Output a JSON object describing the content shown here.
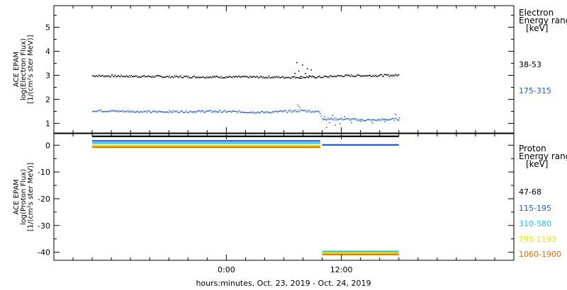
{
  "chart_data": [
    {
      "type": "scatter",
      "ylabel_lines": [
        "ACE EPAM",
        "log(Electron Flux)",
        "[1/(cm²s ster MeV)]"
      ],
      "ylim": [
        0.6,
        5.9
      ],
      "yticks": [
        1,
        2,
        3,
        4,
        5
      ],
      "ytick_labels": [
        "1",
        "2",
        "3",
        "4",
        "5"
      ],
      "legend_title_lines": [
        "Electron",
        "Energy ranges",
        "[keV]"
      ],
      "series": [
        {
          "name": "38-53",
          "color": "#000000",
          "baseline": [
            [
              -14,
              3.0
            ],
            [
              -6,
              2.96
            ],
            [
              0,
              2.95
            ],
            [
              6,
              2.94
            ],
            [
              10,
              2.95
            ],
            [
              12,
              3.0
            ],
            [
              18,
              3.02
            ]
          ],
          "spike": [
            [
              7.1,
              3.1
            ],
            [
              7.3,
              3.55
            ],
            [
              7.5,
              3.2
            ],
            [
              7.7,
              2.9
            ],
            [
              7.9,
              3.45
            ],
            [
              8.2,
              3.1
            ],
            [
              8.4,
              3.3
            ],
            [
              8.6,
              3.0
            ],
            [
              8.8,
              3.25
            ],
            [
              9.1,
              2.95
            ]
          ]
        },
        {
          "name": "175-315",
          "color": "#1d5fd6",
          "baseline": [
            [
              -14,
              1.55
            ],
            [
              -8,
              1.5
            ],
            [
              -2,
              1.52
            ],
            [
              4,
              1.48
            ],
            [
              8,
              1.55
            ],
            [
              9.7,
              1.5
            ],
            [
              10.0,
              1.2
            ],
            [
              12,
              1.2
            ],
            [
              15,
              1.15
            ],
            [
              18,
              1.2
            ]
          ],
          "spike": [
            [
              7.4,
              1.78
            ],
            [
              7.6,
              1.7
            ],
            [
              10.2,
              1.3
            ],
            [
              10.4,
              0.85
            ],
            [
              10.7,
              1.05
            ],
            [
              11.0,
              1.35
            ],
            [
              11.3,
              0.95
            ],
            [
              11.8,
              1.0
            ],
            [
              12.3,
              1.3
            ],
            [
              13.0,
              1.05
            ],
            [
              14.0,
              1.1
            ],
            [
              15.2,
              1.05
            ],
            [
              16.5,
              1.1
            ],
            [
              17.6,
              1.4
            ],
            [
              18.0,
              1.25
            ]
          ]
        }
      ]
    },
    {
      "type": "scatter",
      "ylabel_lines": [
        "ACE EPAM",
        "log(Proton Flux)",
        "[1/(cm²s ster MeV)]"
      ],
      "ylim": [
        -43,
        4.3
      ],
      "yticks": [
        0,
        -10,
        -20,
        -30,
        -40
      ],
      "ytick_labels": [
        "0",
        "-10",
        "-20",
        "-30",
        "-40"
      ],
      "legend_title_lines": [
        "Proton",
        "Energy ranges",
        "[keV]"
      ],
      "series": [
        {
          "name": "47-68",
          "color": "#000000",
          "segments": [
            [
              [
                -14,
                3.3
              ],
              [
                18,
                3.3
              ]
            ]
          ]
        },
        {
          "name": "115-195",
          "color": "#1d5fd6",
          "segments": [
            [
              [
                -14,
                1.6
              ],
              [
                9.8,
                1.6
              ]
            ],
            [
              [
                10,
                0.1
              ],
              [
                18,
                0.1
              ]
            ]
          ]
        },
        {
          "name": "310-580",
          "color": "#17c8e8",
          "segments": [
            [
              [
                -14,
                0.8
              ],
              [
                9.8,
                0.8
              ]
            ],
            [
              [
                10,
                -39.7
              ],
              [
                18,
                -39.7
              ]
            ]
          ]
        },
        {
          "name": "795-1193",
          "color": "#e8e600",
          "segments": [
            [
              [
                -14,
                -0.1
              ],
              [
                9.8,
                -0.1
              ]
            ],
            [
              [
                10,
                -40.2
              ],
              [
                18,
                -40.2
              ]
            ]
          ]
        },
        {
          "name": "1060-1900",
          "color": "#e86a00",
          "segments": [
            [
              [
                -14,
                -0.7
              ],
              [
                9.8,
                -0.7
              ]
            ],
            [
              [
                10,
                -40.8
              ],
              [
                18,
                -40.8
              ]
            ]
          ]
        }
      ]
    }
  ],
  "xaxis": {
    "xlim": [
      -18,
      30
    ],
    "major_ticks": [
      -18,
      0,
      12,
      30
    ],
    "minor_step": 2,
    "tick_labels": [
      {
        "x": 0,
        "text": "0:00"
      },
      {
        "x": 12,
        "text": "12:00"
      }
    ],
    "xlabel": "hours:minutes, Oct. 23, 2019 - Oct. 24, 2019"
  }
}
